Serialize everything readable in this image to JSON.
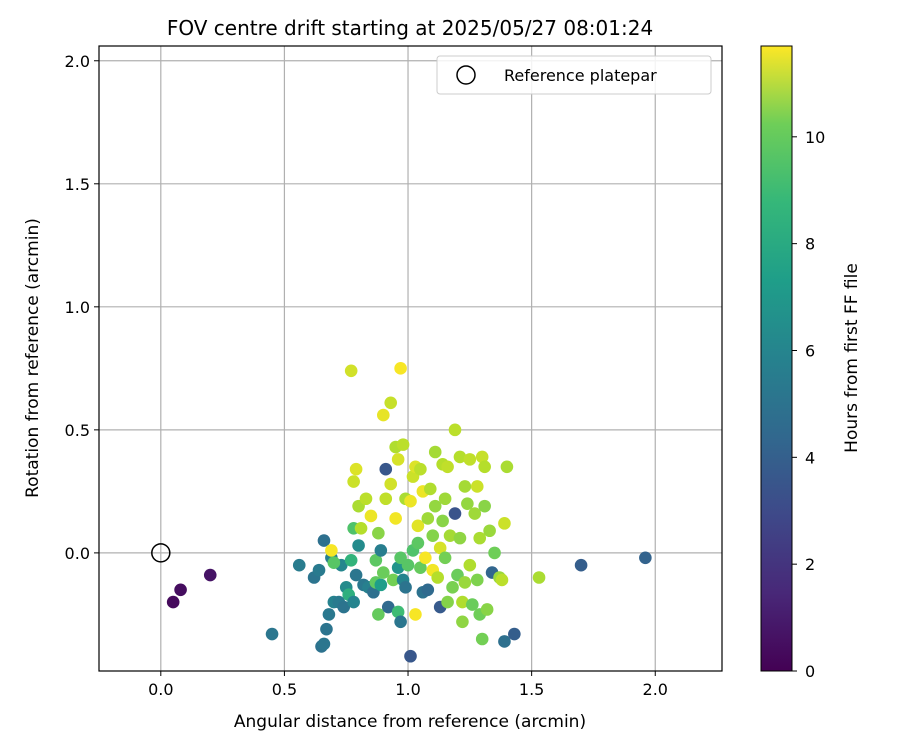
{
  "chart_data": {
    "type": "scatter",
    "title": "FOV centre drift starting at 2025/05/27 08:01:24",
    "xlabel": "Angular distance from reference (arcmin)",
    "ylabel": "Rotation from reference (arcmin)",
    "xlim": [
      -0.25,
      2.27
    ],
    "ylim": [
      -0.48,
      2.06
    ],
    "xticks": [
      0.0,
      0.5,
      1.0,
      1.5,
      2.0
    ],
    "xtick_labels": [
      "0.0",
      "0.5",
      "1.0",
      "1.5",
      "2.0"
    ],
    "yticks": [
      0.0,
      0.5,
      1.0,
      1.5,
      2.0
    ],
    "ytick_labels": [
      "0.0",
      "0.5",
      "1.0",
      "1.5",
      "2.0"
    ],
    "grid": true,
    "legend": {
      "position": "top-right",
      "entries": [
        "Reference platepar"
      ]
    },
    "reference_point": {
      "x": 0.0,
      "y": 0.0
    },
    "colorbar": {
      "label": "Hours from first FF file",
      "range": [
        0,
        11.7
      ],
      "ticks": [
        0,
        2,
        4,
        6,
        8,
        10
      ],
      "tick_labels": [
        "0",
        "2",
        "4",
        "6",
        "8",
        "10"
      ],
      "colormap": "viridis"
    },
    "points": [
      {
        "x": 0.05,
        "y": -0.2,
        "h": 0.3
      },
      {
        "x": 0.08,
        "y": -0.15,
        "h": 0.4
      },
      {
        "x": 0.2,
        "y": -0.09,
        "h": 0.6
      },
      {
        "x": 0.45,
        "y": -0.33,
        "h": 4.6
      },
      {
        "x": 0.56,
        "y": -0.05,
        "h": 4.9
      },
      {
        "x": 0.62,
        "y": -0.1,
        "h": 4.5
      },
      {
        "x": 0.64,
        "y": -0.07,
        "h": 4.8
      },
      {
        "x": 0.65,
        "y": -0.38,
        "h": 4.4
      },
      {
        "x": 0.66,
        "y": -0.37,
        "h": 4.6
      },
      {
        "x": 0.66,
        "y": 0.05,
        "h": 4.3
      },
      {
        "x": 0.67,
        "y": -0.31,
        "h": 4.5
      },
      {
        "x": 0.68,
        "y": -0.25,
        "h": 4.7
      },
      {
        "x": 0.69,
        "y": -0.02,
        "h": 5.0
      },
      {
        "x": 0.7,
        "y": -0.2,
        "h": 5.2
      },
      {
        "x": 0.72,
        "y": -0.2,
        "h": 4.8
      },
      {
        "x": 0.73,
        "y": -0.05,
        "h": 5.4
      },
      {
        "x": 0.74,
        "y": -0.22,
        "h": 4.5
      },
      {
        "x": 0.75,
        "y": -0.14,
        "h": 5.6
      },
      {
        "x": 0.76,
        "y": -0.17,
        "h": 7.4
      },
      {
        "x": 0.77,
        "y": -0.03,
        "h": 7.6
      },
      {
        "x": 0.78,
        "y": -0.2,
        "h": 5.3
      },
      {
        "x": 0.79,
        "y": -0.09,
        "h": 4.6
      },
      {
        "x": 0.69,
        "y": 0.01,
        "h": 11.6
      },
      {
        "x": 0.7,
        "y": -0.04,
        "h": 8.6
      },
      {
        "x": 0.77,
        "y": 0.74,
        "h": 10.9
      },
      {
        "x": 0.78,
        "y": 0.1,
        "h": 8.4
      },
      {
        "x": 0.78,
        "y": 0.29,
        "h": 10.8
      },
      {
        "x": 0.79,
        "y": 0.34,
        "h": 11.1
      },
      {
        "x": 0.8,
        "y": 0.19,
        "h": 10.2
      },
      {
        "x": 0.8,
        "y": 0.03,
        "h": 5.6
      },
      {
        "x": 0.81,
        "y": 0.1,
        "h": 10.4
      },
      {
        "x": 0.82,
        "y": -0.13,
        "h": 4.7
      },
      {
        "x": 0.83,
        "y": 0.22,
        "h": 10.5
      },
      {
        "x": 0.84,
        "y": -0.14,
        "h": 5.1
      },
      {
        "x": 0.85,
        "y": 0.15,
        "h": 11.4
      },
      {
        "x": 0.86,
        "y": -0.16,
        "h": 4.3
      },
      {
        "x": 0.87,
        "y": -0.12,
        "h": 8.8
      },
      {
        "x": 0.87,
        "y": -0.03,
        "h": 8.7
      },
      {
        "x": 0.88,
        "y": -0.25,
        "h": 8.9
      },
      {
        "x": 0.88,
        "y": 0.08,
        "h": 9.6
      },
      {
        "x": 0.89,
        "y": -0.13,
        "h": 6.5
      },
      {
        "x": 0.89,
        "y": 0.01,
        "h": 5.0
      },
      {
        "x": 0.9,
        "y": 0.56,
        "h": 11.3
      },
      {
        "x": 0.9,
        "y": -0.08,
        "h": 9.0
      },
      {
        "x": 0.91,
        "y": 0.22,
        "h": 10.6
      },
      {
        "x": 0.91,
        "y": 0.34,
        "h": 3.2
      },
      {
        "x": 0.92,
        "y": -0.22,
        "h": 4.0
      },
      {
        "x": 0.93,
        "y": 0.28,
        "h": 10.9
      },
      {
        "x": 0.93,
        "y": 0.61,
        "h": 10.7
      },
      {
        "x": 0.94,
        "y": -0.11,
        "h": 9.2
      },
      {
        "x": 0.95,
        "y": 0.43,
        "h": 10.3
      },
      {
        "x": 0.95,
        "y": 0.14,
        "h": 11.5
      },
      {
        "x": 0.96,
        "y": -0.06,
        "h": 6.0
      },
      {
        "x": 0.96,
        "y": -0.24,
        "h": 8.0
      },
      {
        "x": 0.96,
        "y": 0.38,
        "h": 11.0
      },
      {
        "x": 0.97,
        "y": 0.75,
        "h": 11.6
      },
      {
        "x": 0.97,
        "y": -0.02,
        "h": 8.6
      },
      {
        "x": 0.97,
        "y": -0.28,
        "h": 4.6
      },
      {
        "x": 0.98,
        "y": 0.44,
        "h": 10.5
      },
      {
        "x": 0.98,
        "y": -0.11,
        "h": 5.3
      },
      {
        "x": 0.99,
        "y": 0.22,
        "h": 10.2
      },
      {
        "x": 0.99,
        "y": -0.14,
        "h": 4.5
      },
      {
        "x": 1.0,
        "y": -0.05,
        "h": 8.6
      },
      {
        "x": 1.01,
        "y": 0.21,
        "h": 11.4
      },
      {
        "x": 1.01,
        "y": -0.42,
        "h": 3.2
      },
      {
        "x": 1.02,
        "y": 0.01,
        "h": 8.4
      },
      {
        "x": 1.02,
        "y": 0.31,
        "h": 10.8
      },
      {
        "x": 1.03,
        "y": -0.25,
        "h": 11.6
      },
      {
        "x": 1.03,
        "y": 0.35,
        "h": 11.1
      },
      {
        "x": 1.04,
        "y": 0.04,
        "h": 8.7
      },
      {
        "x": 1.04,
        "y": 0.11,
        "h": 11.2
      },
      {
        "x": 1.05,
        "y": 0.34,
        "h": 10.5
      },
      {
        "x": 1.05,
        "y": -0.06,
        "h": 8.9
      },
      {
        "x": 1.06,
        "y": 0.25,
        "h": 11.4
      },
      {
        "x": 1.06,
        "y": -0.16,
        "h": 4.4
      },
      {
        "x": 1.07,
        "y": -0.02,
        "h": 11.6
      },
      {
        "x": 1.08,
        "y": 0.14,
        "h": 10.0
      },
      {
        "x": 1.08,
        "y": -0.15,
        "h": 4.0
      },
      {
        "x": 1.09,
        "y": 0.26,
        "h": 10.3
      },
      {
        "x": 1.1,
        "y": -0.07,
        "h": 11.5
      },
      {
        "x": 1.1,
        "y": 0.07,
        "h": 9.5
      },
      {
        "x": 1.11,
        "y": 0.41,
        "h": 10.1
      },
      {
        "x": 1.11,
        "y": 0.19,
        "h": 9.8
      },
      {
        "x": 1.12,
        "y": -0.1,
        "h": 10.4
      },
      {
        "x": 1.13,
        "y": 0.02,
        "h": 11.0
      },
      {
        "x": 1.13,
        "y": -0.22,
        "h": 3.3
      },
      {
        "x": 1.14,
        "y": 0.36,
        "h": 10.4
      },
      {
        "x": 1.14,
        "y": 0.13,
        "h": 9.6
      },
      {
        "x": 1.15,
        "y": -0.02,
        "h": 9.2
      },
      {
        "x": 1.15,
        "y": 0.22,
        "h": 10.0
      },
      {
        "x": 1.16,
        "y": 0.35,
        "h": 10.6
      },
      {
        "x": 1.16,
        "y": -0.2,
        "h": 9.5
      },
      {
        "x": 1.17,
        "y": 0.07,
        "h": 10.1
      },
      {
        "x": 1.18,
        "y": -0.14,
        "h": 9.3
      },
      {
        "x": 1.19,
        "y": 0.5,
        "h": 10.5
      },
      {
        "x": 1.19,
        "y": 0.16,
        "h": 3.0
      },
      {
        "x": 1.2,
        "y": -0.09,
        "h": 9.0
      },
      {
        "x": 1.21,
        "y": 0.39,
        "h": 10.4
      },
      {
        "x": 1.21,
        "y": 0.06,
        "h": 9.7
      },
      {
        "x": 1.22,
        "y": -0.28,
        "h": 9.7
      },
      {
        "x": 1.22,
        "y": -0.2,
        "h": 10.3
      },
      {
        "x": 1.23,
        "y": 0.27,
        "h": 10.1
      },
      {
        "x": 1.23,
        "y": -0.12,
        "h": 9.9
      },
      {
        "x": 1.24,
        "y": 0.2,
        "h": 9.8
      },
      {
        "x": 1.25,
        "y": -0.05,
        "h": 10.3
      },
      {
        "x": 1.25,
        "y": 0.38,
        "h": 10.6
      },
      {
        "x": 1.26,
        "y": -0.21,
        "h": 9.0
      },
      {
        "x": 1.27,
        "y": 0.16,
        "h": 10.0
      },
      {
        "x": 1.28,
        "y": -0.11,
        "h": 9.4
      },
      {
        "x": 1.28,
        "y": 0.27,
        "h": 10.8
      },
      {
        "x": 1.29,
        "y": 0.06,
        "h": 10.2
      },
      {
        "x": 1.29,
        "y": -0.25,
        "h": 9.1
      },
      {
        "x": 1.3,
        "y": 0.39,
        "h": 10.7
      },
      {
        "x": 1.3,
        "y": -0.35,
        "h": 9.2
      },
      {
        "x": 1.31,
        "y": 0.35,
        "h": 10.4
      },
      {
        "x": 1.31,
        "y": 0.19,
        "h": 9.6
      },
      {
        "x": 1.32,
        "y": -0.23,
        "h": 9.6
      },
      {
        "x": 1.33,
        "y": 0.09,
        "h": 9.9
      },
      {
        "x": 1.34,
        "y": -0.08,
        "h": 3.8
      },
      {
        "x": 1.35,
        "y": 0.0,
        "h": 9.1
      },
      {
        "x": 1.37,
        "y": -0.1,
        "h": 9.9
      },
      {
        "x": 1.38,
        "y": -0.11,
        "h": 10.5
      },
      {
        "x": 1.39,
        "y": -0.36,
        "h": 4.3
      },
      {
        "x": 1.39,
        "y": 0.12,
        "h": 10.8
      },
      {
        "x": 1.4,
        "y": 0.35,
        "h": 10.2
      },
      {
        "x": 1.43,
        "y": -0.33,
        "h": 3.5
      },
      {
        "x": 1.53,
        "y": -0.1,
        "h": 10.2
      },
      {
        "x": 1.7,
        "y": -0.05,
        "h": 3.5
      },
      {
        "x": 1.96,
        "y": -0.02,
        "h": 3.7
      }
    ]
  }
}
